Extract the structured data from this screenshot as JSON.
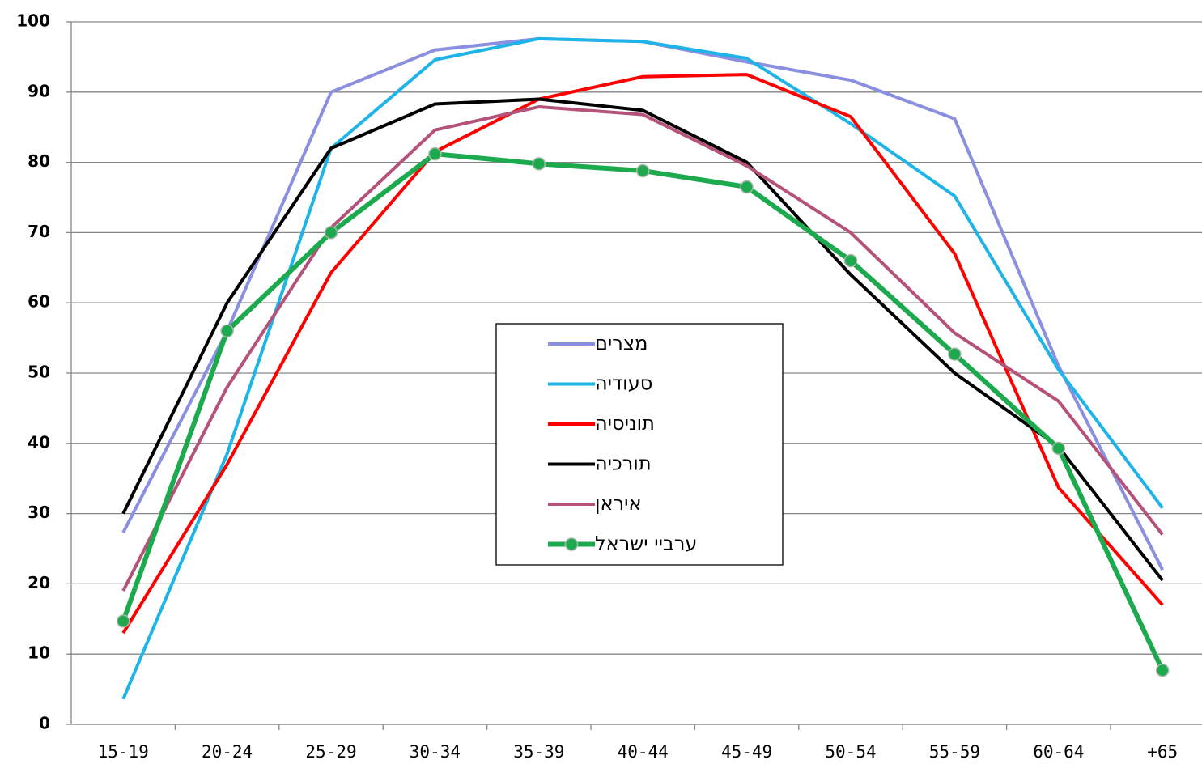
{
  "chart_data": {
    "type": "line",
    "categories": [
      "15-19",
      "20-24",
      "25-29",
      "30-34",
      "35-39",
      "40-44",
      "45-49",
      "50-54",
      "55-59",
      "60-64",
      "+65"
    ],
    "series": [
      {
        "name": "מצרים",
        "color": "#8b8fe0",
        "values": [
          27.3,
          56,
          90,
          96,
          97.6,
          97.2,
          94.3,
          91.7,
          86.2,
          51,
          22
        ]
      },
      {
        "name": "סעודיה",
        "color": "#1eb4e8",
        "values": [
          3.6,
          38.5,
          82,
          94.6,
          97.6,
          97.2,
          94.8,
          85.5,
          75.2,
          50.5,
          30.8
        ]
      },
      {
        "name": "תוניסיה",
        "color": "#ff0000",
        "values": [
          13,
          37,
          64.3,
          81.5,
          89,
          92.2,
          92.5,
          86.5,
          67,
          33.7,
          17
        ]
      },
      {
        "name": "תורכיה",
        "color": "#000000",
        "values": [
          30,
          60,
          82,
          88.3,
          89,
          87.4,
          80,
          64,
          50,
          39.5,
          20.5
        ]
      },
      {
        "name": "איראן",
        "color": "#b5527a",
        "values": [
          19,
          48,
          70.7,
          84.6,
          87.9,
          86.8,
          79.5,
          70,
          55.7,
          46,
          27
        ]
      },
      {
        "name": "ערביי ישראל",
        "color": "#1daa4f",
        "markers": true,
        "values": [
          14.7,
          56,
          70,
          81.2,
          79.8,
          78.8,
          76.5,
          66,
          52.7,
          39.3,
          7.7
        ]
      }
    ],
    "ylim": [
      0,
      100
    ],
    "yticks": [
      0,
      10,
      20,
      30,
      40,
      50,
      60,
      70,
      80,
      90,
      100
    ],
    "grid": true,
    "legend": "center"
  }
}
